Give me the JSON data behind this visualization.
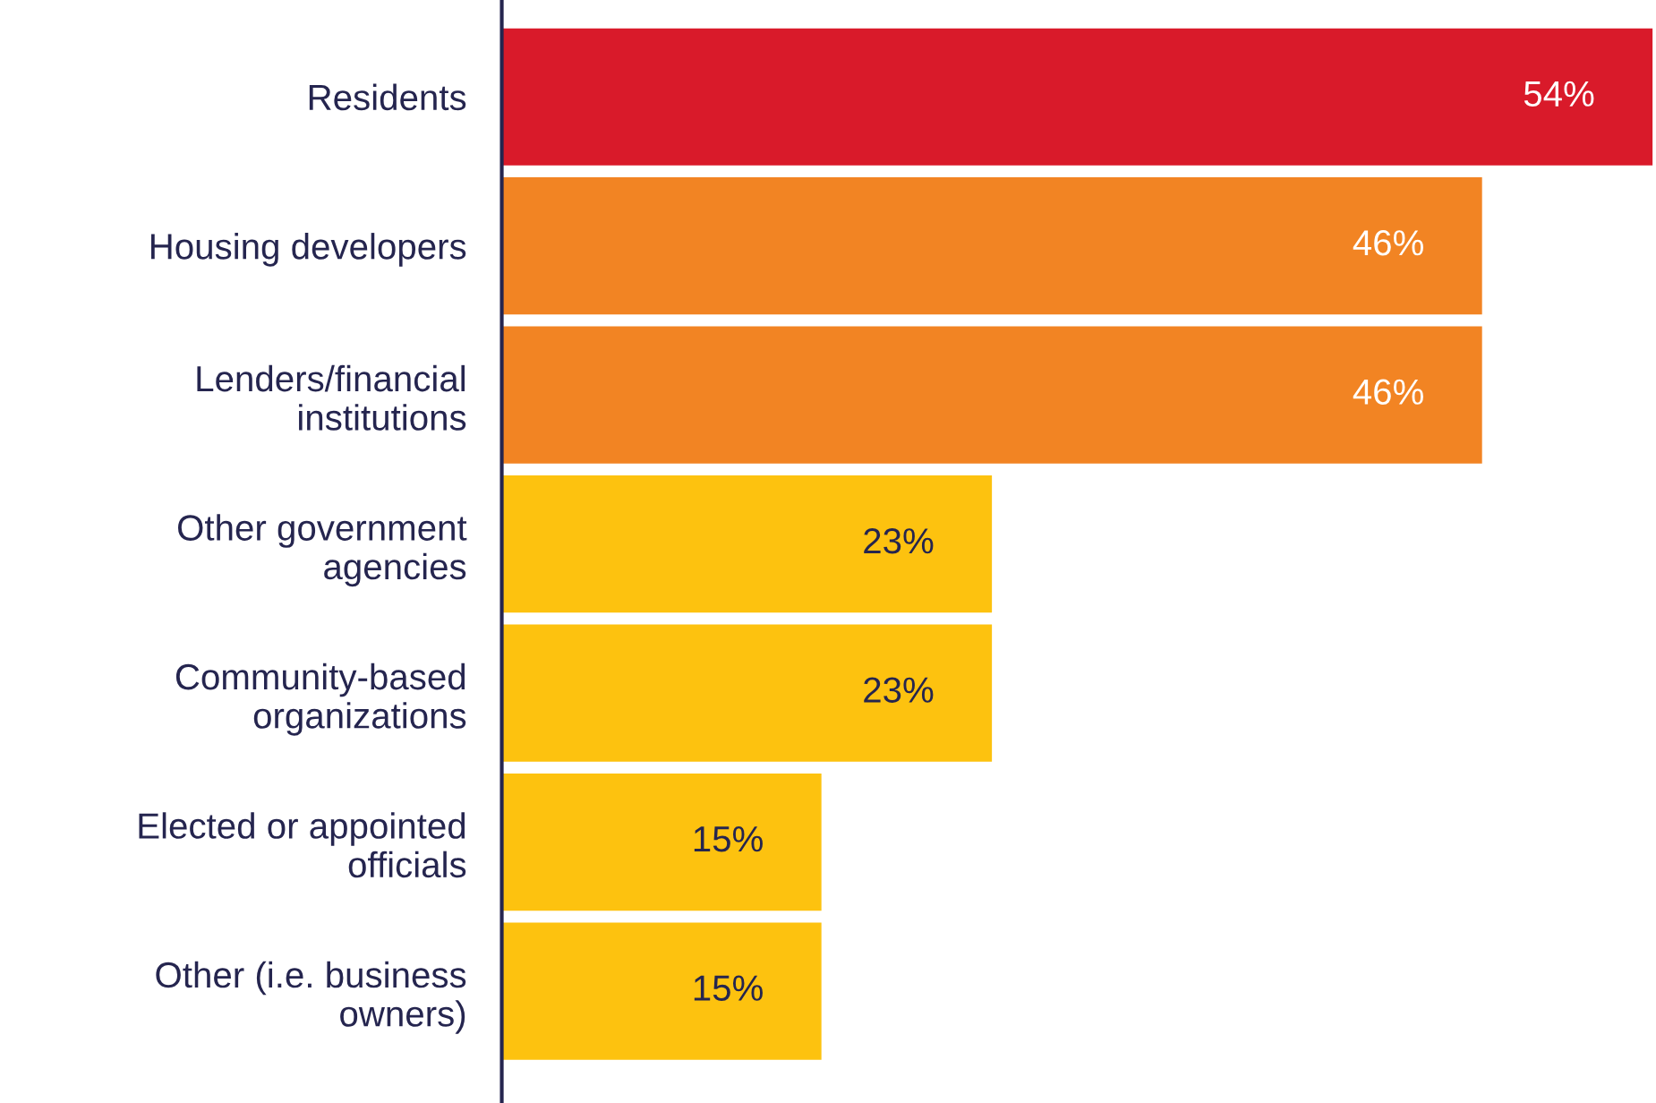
{
  "chart_data": {
    "type": "bar",
    "orientation": "horizontal",
    "tick_labels": "y",
    "grid": false,
    "legend": false,
    "categories": [
      "Residents",
      "Housing developers",
      "Lenders/financial\ninstitutions",
      "Other government\nagencies",
      "Community-based\norganizations",
      "Elected or appointed\nofficials",
      "Other (i.e. business\nowners)"
    ],
    "values": [
      54,
      46,
      46,
      23,
      23,
      15,
      15
    ],
    "value_labels": [
      "54%",
      "46%",
      "46%",
      "23%",
      "23%",
      "15%",
      "15%"
    ],
    "colors": [
      "#d91a2a",
      "#f28423",
      "#f28423",
      "#fdc20f",
      "#fdc20f",
      "#fdc20f",
      "#fdc20f"
    ]
  }
}
